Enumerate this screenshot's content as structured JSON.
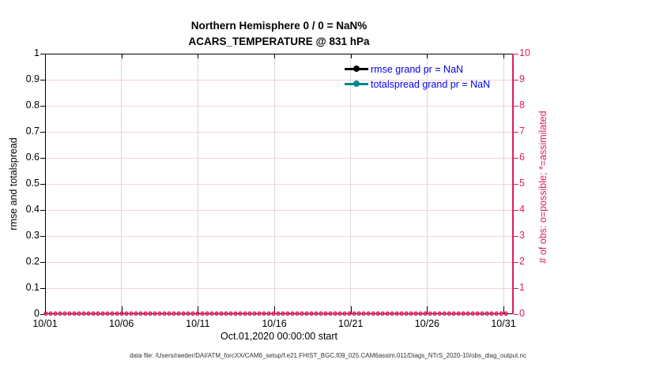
{
  "title": {
    "line1": "Northern Hemisphere 0 / 0 = NaN%",
    "line2": "ACARS_TEMPERATURE @ 831 hPa"
  },
  "footer": {
    "text": "data file: /Users/raeder/DAI/ATM_forcXX/CAM6_setup/f.e21.FHIST_BGC.f09_025.CAM6assim.011/Diags_NTrS_2020-10/obs_diag_output.nc"
  },
  "colors": {
    "obs_crimson": "#DC1E5A",
    "rmse_black": "#000000",
    "totalspread_teal": "#008888",
    "legend_text_blue": "#0000F0",
    "grid_horizontal_pink": "#F8D0DC",
    "grid_vertical_gray": "#D8D8D8",
    "axis_black": "#000000"
  },
  "chart_data": {
    "type": "line",
    "title": "Northern Hemisphere 0 / 0 = NaN%",
    "subtitle": "ACARS_TEMPERATURE @ 831 hPa",
    "xlabel": "Oct.01,2020 00:00:00 start",
    "x_ticks": [
      "10/01",
      "10/06",
      "10/11",
      "10/16",
      "10/21",
      "10/26",
      "10/31"
    ],
    "x_range_days": [
      0,
      30.56
    ],
    "left_axis": {
      "label": "rmse and totalspread",
      "ticks": [
        "0",
        "0.1",
        "0.2",
        "0.3",
        "0.4",
        "0.5",
        "0.6",
        "0.7",
        "0.8",
        "0.9",
        "1"
      ],
      "range": [
        0,
        1
      ]
    },
    "right_axis": {
      "label": "# of obs: o=possible; *=assimilated",
      "ticks": [
        "0",
        "1",
        "2",
        "3",
        "4",
        "5",
        "6",
        "7",
        "8",
        "9",
        "10"
      ],
      "range": [
        0,
        10
      ]
    },
    "series": [
      {
        "name": "rmse grand pr = NaN",
        "color": "#000000",
        "values": null,
        "value_note": "NaN"
      },
      {
        "name": "totalspread grand pr = NaN",
        "color": "#008888",
        "values": null,
        "value_note": "NaN"
      }
    ],
    "obs_markers": {
      "possible_char": "o",
      "assimilated_char": "*",
      "y_value": 0,
      "x_start": "10/01",
      "x_end": "10/31",
      "approx_marker_count": 98
    },
    "legend_position": "top-right-inside",
    "grid": true
  }
}
